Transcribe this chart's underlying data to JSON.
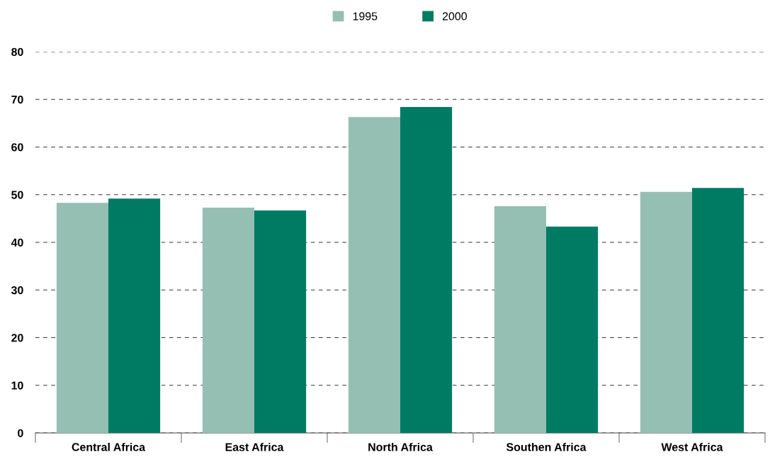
{
  "chart_data": {
    "type": "bar",
    "categories": [
      "Central Africa",
      "East Africa",
      "North Africa",
      "Southen Africa",
      "West Africa"
    ],
    "series": [
      {
        "name": "1995",
        "color": "#96bfb3",
        "values": [
          48.3,
          47.3,
          66.3,
          47.6,
          50.6
        ]
      },
      {
        "name": "2000",
        "color": "#007b63",
        "values": [
          49.2,
          46.7,
          68.4,
          43.3,
          51.4
        ]
      }
    ],
    "ylim": [
      0,
      80
    ],
    "yticks": [
      0,
      10,
      20,
      30,
      40,
      50,
      60,
      70,
      80
    ],
    "grid": "y",
    "legend": "top"
  }
}
